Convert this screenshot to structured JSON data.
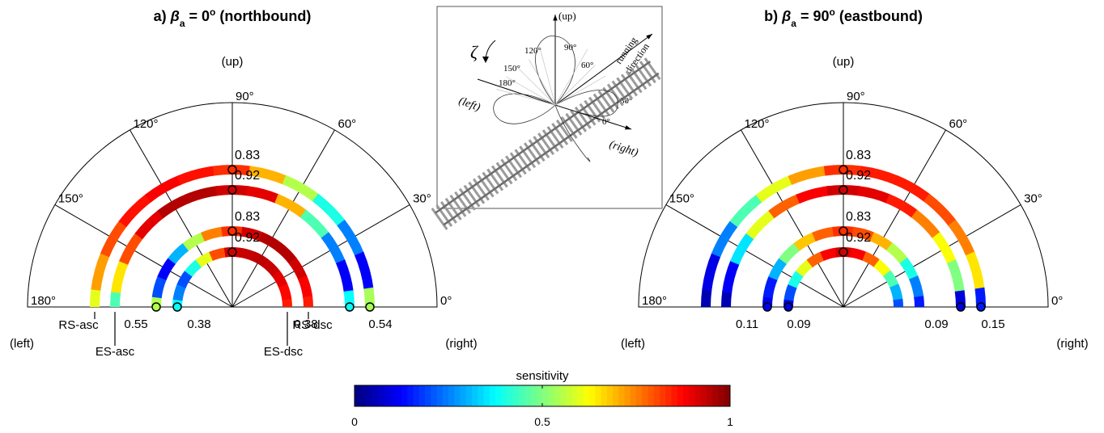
{
  "chart_data": [
    {
      "type": "polar",
      "title": [
        "a) ",
        "β",
        "a",
        " = 0",
        "o",
        " (northbound)"
      ],
      "up_label": "(up)",
      "left_label": "(left)",
      "right_label": "(right)",
      "theta": [
        180,
        165,
        150,
        135,
        120,
        105,
        90,
        75,
        60,
        45,
        30,
        15,
        0
      ],
      "thetalim": [
        0,
        180
      ],
      "thetaticks": [
        {
          "value": 0,
          "label": "0°"
        },
        {
          "value": 30,
          "label": "30°"
        },
        {
          "value": 60,
          "label": "60°"
        },
        {
          "value": 90,
          "label": "90°"
        },
        {
          "value": 120,
          "label": "120°"
        },
        {
          "value": 150,
          "label": "150°"
        },
        {
          "value": 180,
          "label": "180°"
        }
      ],
      "colormap": "jet",
      "series": [
        {
          "name": "RS-asc",
          "values": [
            0.6,
            0.72,
            0.8,
            0.86,
            0.88,
            0.86,
            0.83,
            0.7,
            0.55,
            0.4,
            0.25,
            0.12,
            0.54
          ]
        },
        {
          "name": "ES-asc",
          "values": [
            0.45,
            0.65,
            0.8,
            0.9,
            0.95,
            0.95,
            0.92,
            0.9,
            0.7,
            0.45,
            0.25,
            0.12,
            0.38
          ]
        },
        {
          "name": "RS-dsc",
          "values": [
            0.55,
            0.2,
            0.12,
            0.3,
            0.55,
            0.75,
            0.83,
            0.92,
            0.95,
            0.95,
            0.92,
            0.88,
            0.85
          ]
        },
        {
          "name": "ES-dsc",
          "values": [
            0.38,
            0.25,
            0.2,
            0.4,
            0.6,
            0.8,
            0.92,
            0.93,
            0.94,
            0.93,
            0.9,
            0.87,
            0.85
          ]
        }
      ]
    },
    {
      "type": "polar",
      "title": [
        "b) ",
        "β",
        "a",
        " = 90",
        "o",
        " (eastbound)"
      ],
      "up_label": "(up)",
      "left_label": "(left)",
      "right_label": "(right)",
      "theta": [
        180,
        165,
        150,
        135,
        120,
        105,
        90,
        75,
        60,
        45,
        30,
        15,
        0
      ],
      "thetalim": [
        0,
        180
      ],
      "thetaticks": [
        {
          "value": 0,
          "label": "0°"
        },
        {
          "value": 30,
          "label": "30°"
        },
        {
          "value": 60,
          "label": "60°"
        },
        {
          "value": 90,
          "label": "90°"
        },
        {
          "value": 120,
          "label": "120°"
        },
        {
          "value": 150,
          "label": "150°"
        },
        {
          "value": 180,
          "label": "180°"
        }
      ],
      "colormap": "jet",
      "series": [
        {
          "values": [
            0.05,
            0.1,
            0.25,
            0.45,
            0.6,
            0.72,
            0.83,
            0.85,
            0.85,
            0.8,
            0.75,
            0.65,
            0.15
          ]
        },
        {
          "values": [
            0.05,
            0.12,
            0.35,
            0.6,
            0.78,
            0.88,
            0.92,
            0.9,
            0.85,
            0.75,
            0.62,
            0.5,
            0.09
          ]
        },
        {
          "values": [
            0.11,
            0.15,
            0.3,
            0.5,
            0.68,
            0.78,
            0.83,
            0.8,
            0.7,
            0.55,
            0.4,
            0.25,
            0.15
          ]
        },
        {
          "values": [
            0.09,
            0.2,
            0.4,
            0.6,
            0.78,
            0.88,
            0.92,
            0.88,
            0.78,
            0.62,
            0.45,
            0.3,
            0.2
          ]
        }
      ]
    }
  ],
  "colorbar": {
    "label": "sensitivity",
    "clim": [
      0,
      1
    ],
    "ticks": [
      0,
      0.5,
      1
    ],
    "colormap": "jet"
  },
  "inset": {
    "up": "(up)",
    "left": "(left)",
    "right": "(right)",
    "zeta": "ζ",
    "running": "running",
    "direction": "direction",
    "a90": "90°",
    "a120": "120°",
    "a150": "150°",
    "a180": "180°",
    "a60": "60°",
    "a30": "30°",
    "a0": "0°"
  }
}
